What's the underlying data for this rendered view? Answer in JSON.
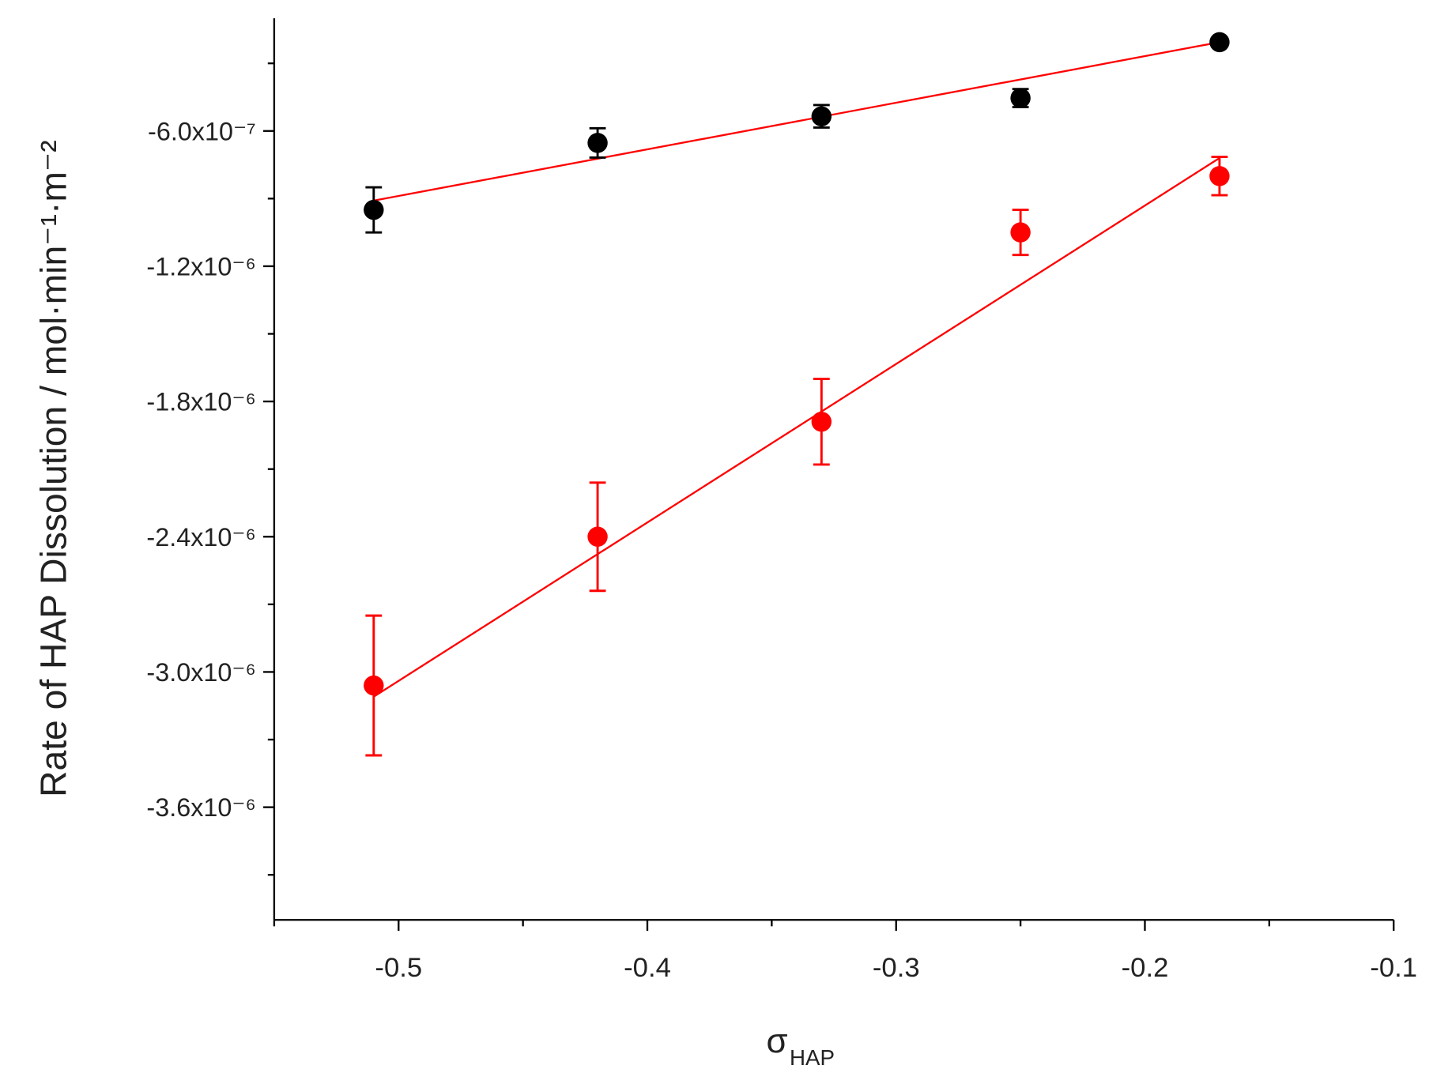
{
  "chart_data": {
    "type": "scatter",
    "y_label": "Rate of HAP Dissolution / mol·min⁻¹·m⁻²",
    "x_label": {
      "symbol": "σ",
      "subscript": "HAP"
    },
    "xlim": [
      -0.55,
      -0.1
    ],
    "xticks": [
      -0.5,
      -0.4,
      -0.3,
      -0.2,
      -0.1
    ],
    "xminorticks": [
      -0.55,
      -0.45,
      -0.35,
      -0.25,
      -0.15
    ],
    "ylim": [
      -4.1e-06,
      -1e-07
    ],
    "yticks": [
      {
        "value": -6e-07,
        "label": "-6.0x10⁻⁷"
      },
      {
        "value": -1.2e-06,
        "label": "-1.2x10⁻⁶"
      },
      {
        "value": -1.8e-06,
        "label": "-1.8x10⁻⁶"
      },
      {
        "value": -2.4e-06,
        "label": "-2.4x10⁻⁶"
      },
      {
        "value": -3e-06,
        "label": "-3.0x10⁻⁶"
      },
      {
        "value": -3.6e-06,
        "label": "-3.6x10⁻⁶"
      }
    ],
    "yminorticks": [
      -3e-07,
      -9e-07,
      -1.5e-06,
      -2.1e-06,
      -2.7e-06,
      -3.3e-06,
      -3.9e-06
    ],
    "series": [
      {
        "color": "#000000",
        "x": [
          -0.51,
          -0.42,
          -0.33,
          -0.25,
          -0.17
        ],
        "values": [
          -9.5e-07,
          -6.53e-07,
          -5.35e-07,
          -4.54e-07,
          -2.06e-07
        ],
        "errors": [
          1e-07,
          6.5e-08,
          5e-08,
          4e-08,
          2e-08
        ]
      },
      {
        "color": "#ff0000",
        "x": [
          -0.51,
          -0.42,
          -0.33,
          -0.25,
          -0.17
        ],
        "values": [
          -3.06e-06,
          -2.4e-06,
          -1.89e-06,
          -1.05e-06,
          -8e-07
        ],
        "errors": [
          3.1e-07,
          2.4e-07,
          1.9e-07,
          1e-07,
          8.5e-08
        ]
      }
    ],
    "fits": [
      {
        "color": "#ff0000",
        "x": [
          -0.51,
          -0.17
        ],
        "values": [
          -9.09e-07,
          -2.06e-07
        ]
      },
      {
        "color": "#ff0000",
        "x": [
          -0.51,
          -0.17
        ],
        "values": [
          -3.11e-06,
          -7.2e-07
        ]
      }
    ]
  }
}
